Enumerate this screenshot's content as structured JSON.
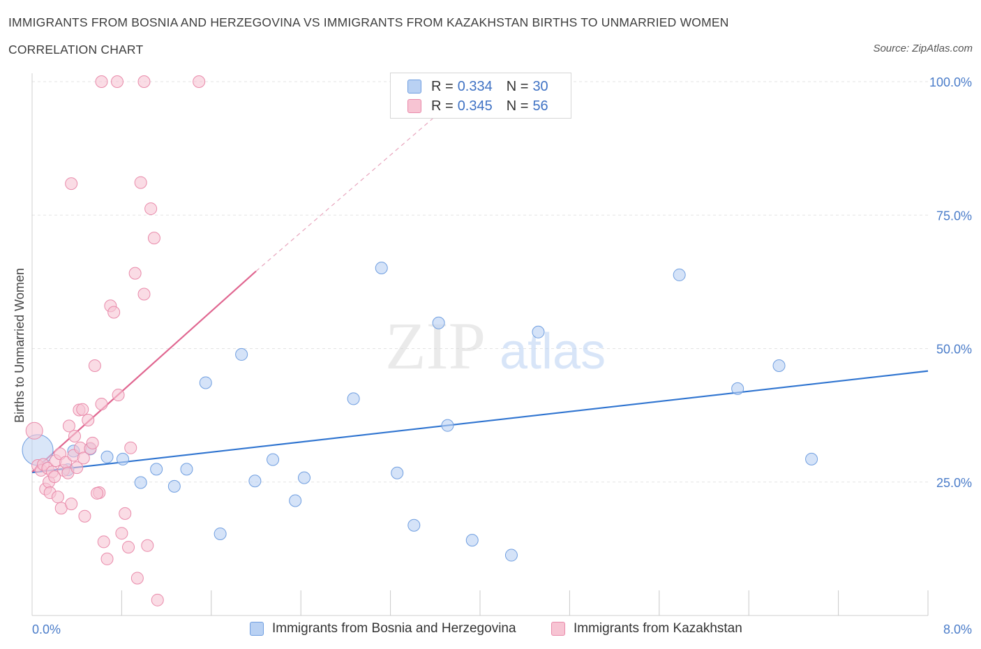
{
  "header": {
    "title": "IMMIGRANTS FROM BOSNIA AND HERZEGOVINA VS IMMIGRANTS FROM KAZAKHSTAN BIRTHS TO UNMARRIED WOMEN",
    "subtitle": "CORRELATION CHART",
    "source": "Source: ZipAtlas.com"
  },
  "watermark": {
    "zip": "ZIP",
    "atlas": "atlas"
  },
  "colors": {
    "blue_fill": "#b9d1f3",
    "blue_stroke": "#6f9ee0",
    "blue_line": "#2f74d0",
    "pink_fill": "#f7c4d3",
    "pink_stroke": "#e98aaa",
    "pink_line": "#e06690",
    "tick_text": "#4a7cc9",
    "grid": "#e3e3e3"
  },
  "legend": {
    "rows": [
      {
        "r_label": "R =",
        "r_value": "0.334",
        "n_label": "N =",
        "n_value": "30"
      },
      {
        "r_label": "R =",
        "r_value": "0.345",
        "n_label": "N =",
        "n_value": "56"
      }
    ]
  },
  "chart_data": {
    "type": "scatter",
    "title": "IMMIGRANTS FROM BOSNIA AND HERZEGOVINA VS IMMIGRANTS FROM KAZAKHSTAN BIRTHS TO UNMARRIED WOMEN",
    "subtitle": "CORRELATION CHART",
    "xlabel": "",
    "ylabel": "Births to Unmarried Women",
    "xlim": [
      0,
      8
    ],
    "ylim": [
      0,
      100
    ],
    "x_tick_labels": [
      {
        "value": 0,
        "label": "0.0%"
      },
      {
        "value": 8,
        "label": "8.0%"
      }
    ],
    "y_tick_labels": [
      {
        "value": 25,
        "label": "25.0%"
      },
      {
        "value": 50,
        "label": "50.0%"
      },
      {
        "value": 75,
        "label": "75.0%"
      },
      {
        "value": 100,
        "label": "100.0%"
      }
    ],
    "x_minor_ticks": [
      0.8,
      1.6,
      2.4,
      3.2,
      4.0,
      4.8,
      5.6,
      6.4,
      7.2,
      8.0
    ],
    "grid": true,
    "legend_position": "top-center",
    "series": [
      {
        "name": "Immigrants from Bosnia and Herzegovina",
        "color": "#6f9ee0",
        "r": "0.334",
        "n": "30",
        "points": [
          [
            0.05,
            31.0
          ],
          [
            0.37,
            30.8
          ],
          [
            0.52,
            31.2
          ],
          [
            0.67,
            29.7
          ],
          [
            0.81,
            29.3
          ],
          [
            0.97,
            24.9
          ],
          [
            1.11,
            27.4
          ],
          [
            1.27,
            24.2
          ],
          [
            1.38,
            27.4
          ],
          [
            1.55,
            43.6
          ],
          [
            1.68,
            15.3
          ],
          [
            1.87,
            48.9
          ],
          [
            1.99,
            25.2
          ],
          [
            2.15,
            29.2
          ],
          [
            2.35,
            21.5
          ],
          [
            2.43,
            25.8
          ],
          [
            2.87,
            40.6
          ],
          [
            3.12,
            65.1
          ],
          [
            3.26,
            26.7
          ],
          [
            3.41,
            16.9
          ],
          [
            3.63,
            54.8
          ],
          [
            3.71,
            35.6
          ],
          [
            3.93,
            14.1
          ],
          [
            4.28,
            11.3
          ],
          [
            4.52,
            53.1
          ],
          [
            5.78,
            63.8
          ],
          [
            6.3,
            42.5
          ],
          [
            6.67,
            46.8
          ],
          [
            6.96,
            29.3
          ],
          [
            0.32,
            27.3
          ]
        ],
        "trend": {
          "x": [
            0.0,
            8.0
          ],
          "y": [
            26.8,
            45.8
          ]
        }
      },
      {
        "name": "Immigrants from Kazakhstan",
        "color": "#e98aaa",
        "r": "0.345",
        "n": "56",
        "points": [
          [
            0.02,
            34.6
          ],
          [
            0.05,
            28.1
          ],
          [
            0.08,
            27.2
          ],
          [
            0.1,
            28.3
          ],
          [
            0.12,
            23.7
          ],
          [
            0.14,
            27.6
          ],
          [
            0.15,
            25.0
          ],
          [
            0.16,
            23.0
          ],
          [
            0.18,
            26.9
          ],
          [
            0.21,
            29.0
          ],
          [
            0.23,
            22.2
          ],
          [
            0.25,
            30.3
          ],
          [
            0.26,
            20.1
          ],
          [
            0.28,
            27.2
          ],
          [
            0.3,
            28.7
          ],
          [
            0.32,
            26.7
          ],
          [
            0.33,
            35.5
          ],
          [
            0.35,
            20.9
          ],
          [
            0.37,
            30.0
          ],
          [
            0.38,
            33.6
          ],
          [
            0.4,
            27.7
          ],
          [
            0.42,
            38.5
          ],
          [
            0.43,
            31.4
          ],
          [
            0.45,
            38.6
          ],
          [
            0.47,
            18.6
          ],
          [
            0.5,
            36.6
          ],
          [
            0.52,
            31.3
          ],
          [
            0.54,
            32.3
          ],
          [
            0.56,
            46.8
          ],
          [
            0.6,
            23.0
          ],
          [
            0.62,
            39.6
          ],
          [
            0.64,
            13.8
          ],
          [
            0.67,
            10.6
          ],
          [
            0.7,
            58.0
          ],
          [
            0.73,
            56.8
          ],
          [
            0.77,
            41.3
          ],
          [
            0.8,
            15.4
          ],
          [
            0.83,
            19.1
          ],
          [
            0.86,
            12.8
          ],
          [
            0.88,
            31.4
          ],
          [
            0.92,
            64.1
          ],
          [
            0.94,
            7.0
          ],
          [
            0.97,
            81.1
          ],
          [
            1.0,
            60.2
          ],
          [
            1.03,
            13.1
          ],
          [
            1.06,
            76.2
          ],
          [
            1.09,
            70.7
          ],
          [
            1.12,
            2.9
          ],
          [
            0.35,
            80.9
          ],
          [
            0.62,
            100.0
          ],
          [
            0.76,
            100.0
          ],
          [
            1.0,
            100.0
          ],
          [
            1.49,
            100.0
          ],
          [
            0.58,
            22.9
          ],
          [
            0.46,
            29.5
          ],
          [
            0.2,
            26.0
          ]
        ],
        "trend": {
          "x": [
            0.0,
            2.0
          ],
          "y": [
            26.9,
            64.5
          ]
        },
        "trend_extension": {
          "x": [
            2.0,
            3.6
          ],
          "y": [
            64.5,
            93.5
          ]
        }
      }
    ]
  },
  "bottom_legend": {
    "items": [
      {
        "label": "Immigrants from Bosnia and Herzegovina"
      },
      {
        "label": "Immigrants from Kazakhstan"
      }
    ]
  }
}
